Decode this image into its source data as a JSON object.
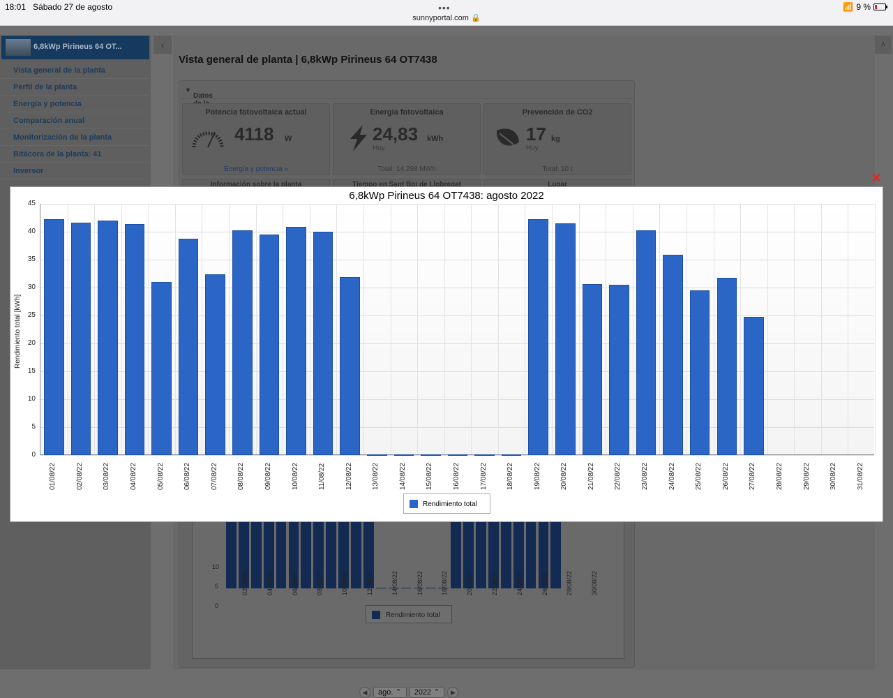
{
  "statusbar": {
    "time": "18:01",
    "date": "Sábado 27 de agosto",
    "url": "sunnyportal.com",
    "battery": "9 %"
  },
  "sidebar": {
    "plant_name": "6,8kWp Pirineus 64 OT...",
    "items": [
      {
        "label": "Vista general de la planta"
      },
      {
        "label": "Perfil de la planta"
      },
      {
        "label": "Energía y potencia"
      },
      {
        "label": "Comparación anual"
      },
      {
        "label": "Monitorización de la planta"
      },
      {
        "label": "Bitácora de la planta: 41"
      },
      {
        "label": "Inversor"
      }
    ]
  },
  "main": {
    "title": "Vista general de planta | 6,8kWp Pirineus 64 OT7438",
    "panel_title": "Datos de la planta",
    "kpis": [
      {
        "title": "Potencia fotovoltaica actual",
        "value": "4118",
        "unit": "W",
        "sub": "",
        "footer": "Energía y potencia »"
      },
      {
        "title": "Energía fotovoltaica",
        "value": "24,83",
        "unit": "kWh",
        "sub": "Hoy",
        "footer": "Total: 14,298 MWh"
      },
      {
        "title": "Prevención de CO2",
        "value": "17",
        "unit": "kg",
        "sub": "Hoy",
        "footer": "Total: 10 t"
      }
    ],
    "info_panels": [
      "Información sobre la planta",
      "Tiempo en Sant Boi de Llobregat",
      "Lugar"
    ],
    "bg_chart": {
      "yticks": [
        "10",
        "5",
        "0"
      ],
      "legend": "Rendimiento total",
      "xlabels": [
        "02/08/22",
        "04/08/22",
        "06/08/22",
        "08/08/22",
        "10/08/22",
        "12/08/22",
        "14/08/22",
        "16/08/22",
        "18/08/22",
        "20/08/22",
        "22/08/22",
        "24/08/22",
        "26/08/22",
        "28/08/22",
        "30/08/22"
      ]
    },
    "period": {
      "month": "ago.",
      "year": "2022"
    }
  },
  "chart_data": {
    "type": "bar",
    "title": "6,8kWp Pirineus 64 OT7438: agosto 2022",
    "ylabel": "Rendimiento total [kWh]",
    "xlabel": "",
    "ylim": [
      0,
      45
    ],
    "yticks": [
      0,
      5,
      10,
      15,
      20,
      25,
      30,
      35,
      40,
      45
    ],
    "grid": true,
    "legend_position": "bottom",
    "color": "#2b66c6",
    "categories": [
      "01/08/22",
      "02/08/22",
      "03/08/22",
      "04/08/22",
      "05/08/22",
      "06/08/22",
      "07/08/22",
      "08/08/22",
      "09/08/22",
      "10/08/22",
      "11/08/22",
      "12/08/22",
      "13/08/22",
      "14/08/22",
      "15/08/22",
      "16/08/22",
      "17/08/22",
      "18/08/22",
      "19/08/22",
      "20/08/22",
      "21/08/22",
      "22/08/22",
      "23/08/22",
      "24/08/22",
      "25/08/22",
      "26/08/22",
      "27/08/22",
      "28/08/22",
      "29/08/22",
      "30/08/22",
      "31/08/22"
    ],
    "series": [
      {
        "name": "Rendimiento total",
        "values": [
          42.2,
          41.6,
          42.0,
          41.4,
          31.0,
          38.7,
          32.4,
          40.3,
          39.5,
          40.9,
          40.0,
          31.9,
          0,
          0,
          0,
          0,
          0,
          0,
          42.2,
          41.5,
          30.6,
          30.5,
          40.2,
          35.9,
          29.5,
          31.8,
          24.8,
          null,
          null,
          null,
          null
        ]
      }
    ]
  }
}
